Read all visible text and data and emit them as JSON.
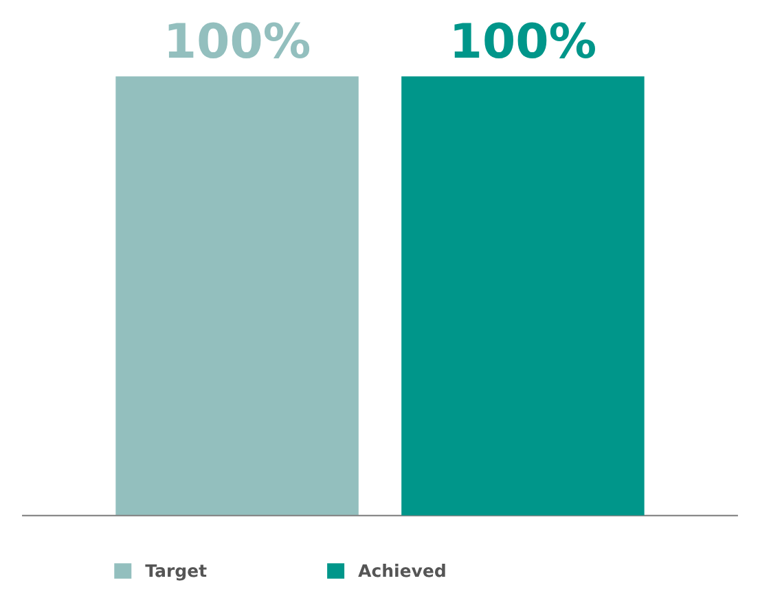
{
  "chart_data": {
    "type": "bar",
    "categories": [
      null
    ],
    "series": [
      {
        "name": "Target",
        "color": "#93bfbe",
        "values": [
          100
        ],
        "value_labels": [
          "100%"
        ]
      },
      {
        "name": "Achieved",
        "color": "#00968a",
        "values": [
          100
        ],
        "value_labels": [
          "100%"
        ]
      }
    ],
    "legend": "bottom"
  }
}
